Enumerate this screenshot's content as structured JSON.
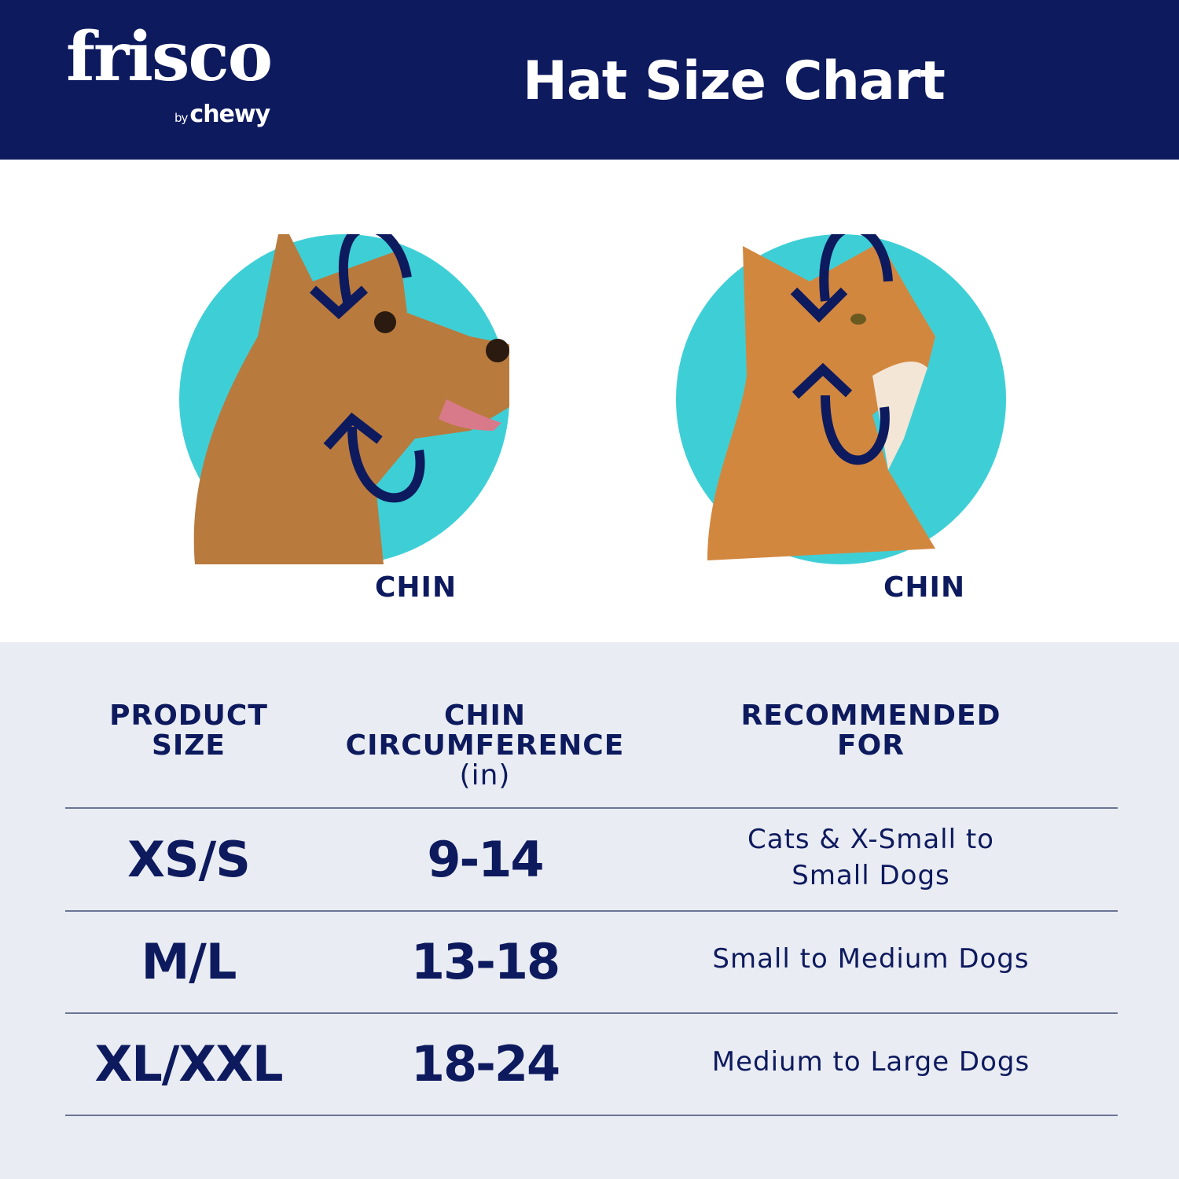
{
  "header": {
    "logo_brand": "frisco",
    "logo_by": "by",
    "logo_partner": "chewy",
    "title": "Hat Size Chart"
  },
  "colors": {
    "navy": "#0d1a5e",
    "teal": "#3ecfd6",
    "table_bg": "#e9ecf2"
  },
  "illustrations": [
    {
      "animal": "dog",
      "label": "CHIN"
    },
    {
      "animal": "cat",
      "label": "CHIN"
    }
  ],
  "table": {
    "headers": [
      {
        "line1": "PRODUCT",
        "line2": "SIZE",
        "unit": ""
      },
      {
        "line1": "CHIN",
        "line2": "CIRCUMFERENCE",
        "unit": "(in)"
      },
      {
        "line1": "RECOMMENDED",
        "line2": "FOR",
        "unit": ""
      }
    ],
    "rows": [
      {
        "size": "XS/S",
        "circumference": "9-14",
        "recommended_line1": "Cats & X-Small to",
        "recommended_line2": "Small Dogs"
      },
      {
        "size": "M/L",
        "circumference": "13-18",
        "recommended_line1": "Small to Medium Dogs",
        "recommended_line2": ""
      },
      {
        "size": "XL/XXL",
        "circumference": "18-24",
        "recommended_line1": "Medium to Large Dogs",
        "recommended_line2": ""
      }
    ]
  }
}
